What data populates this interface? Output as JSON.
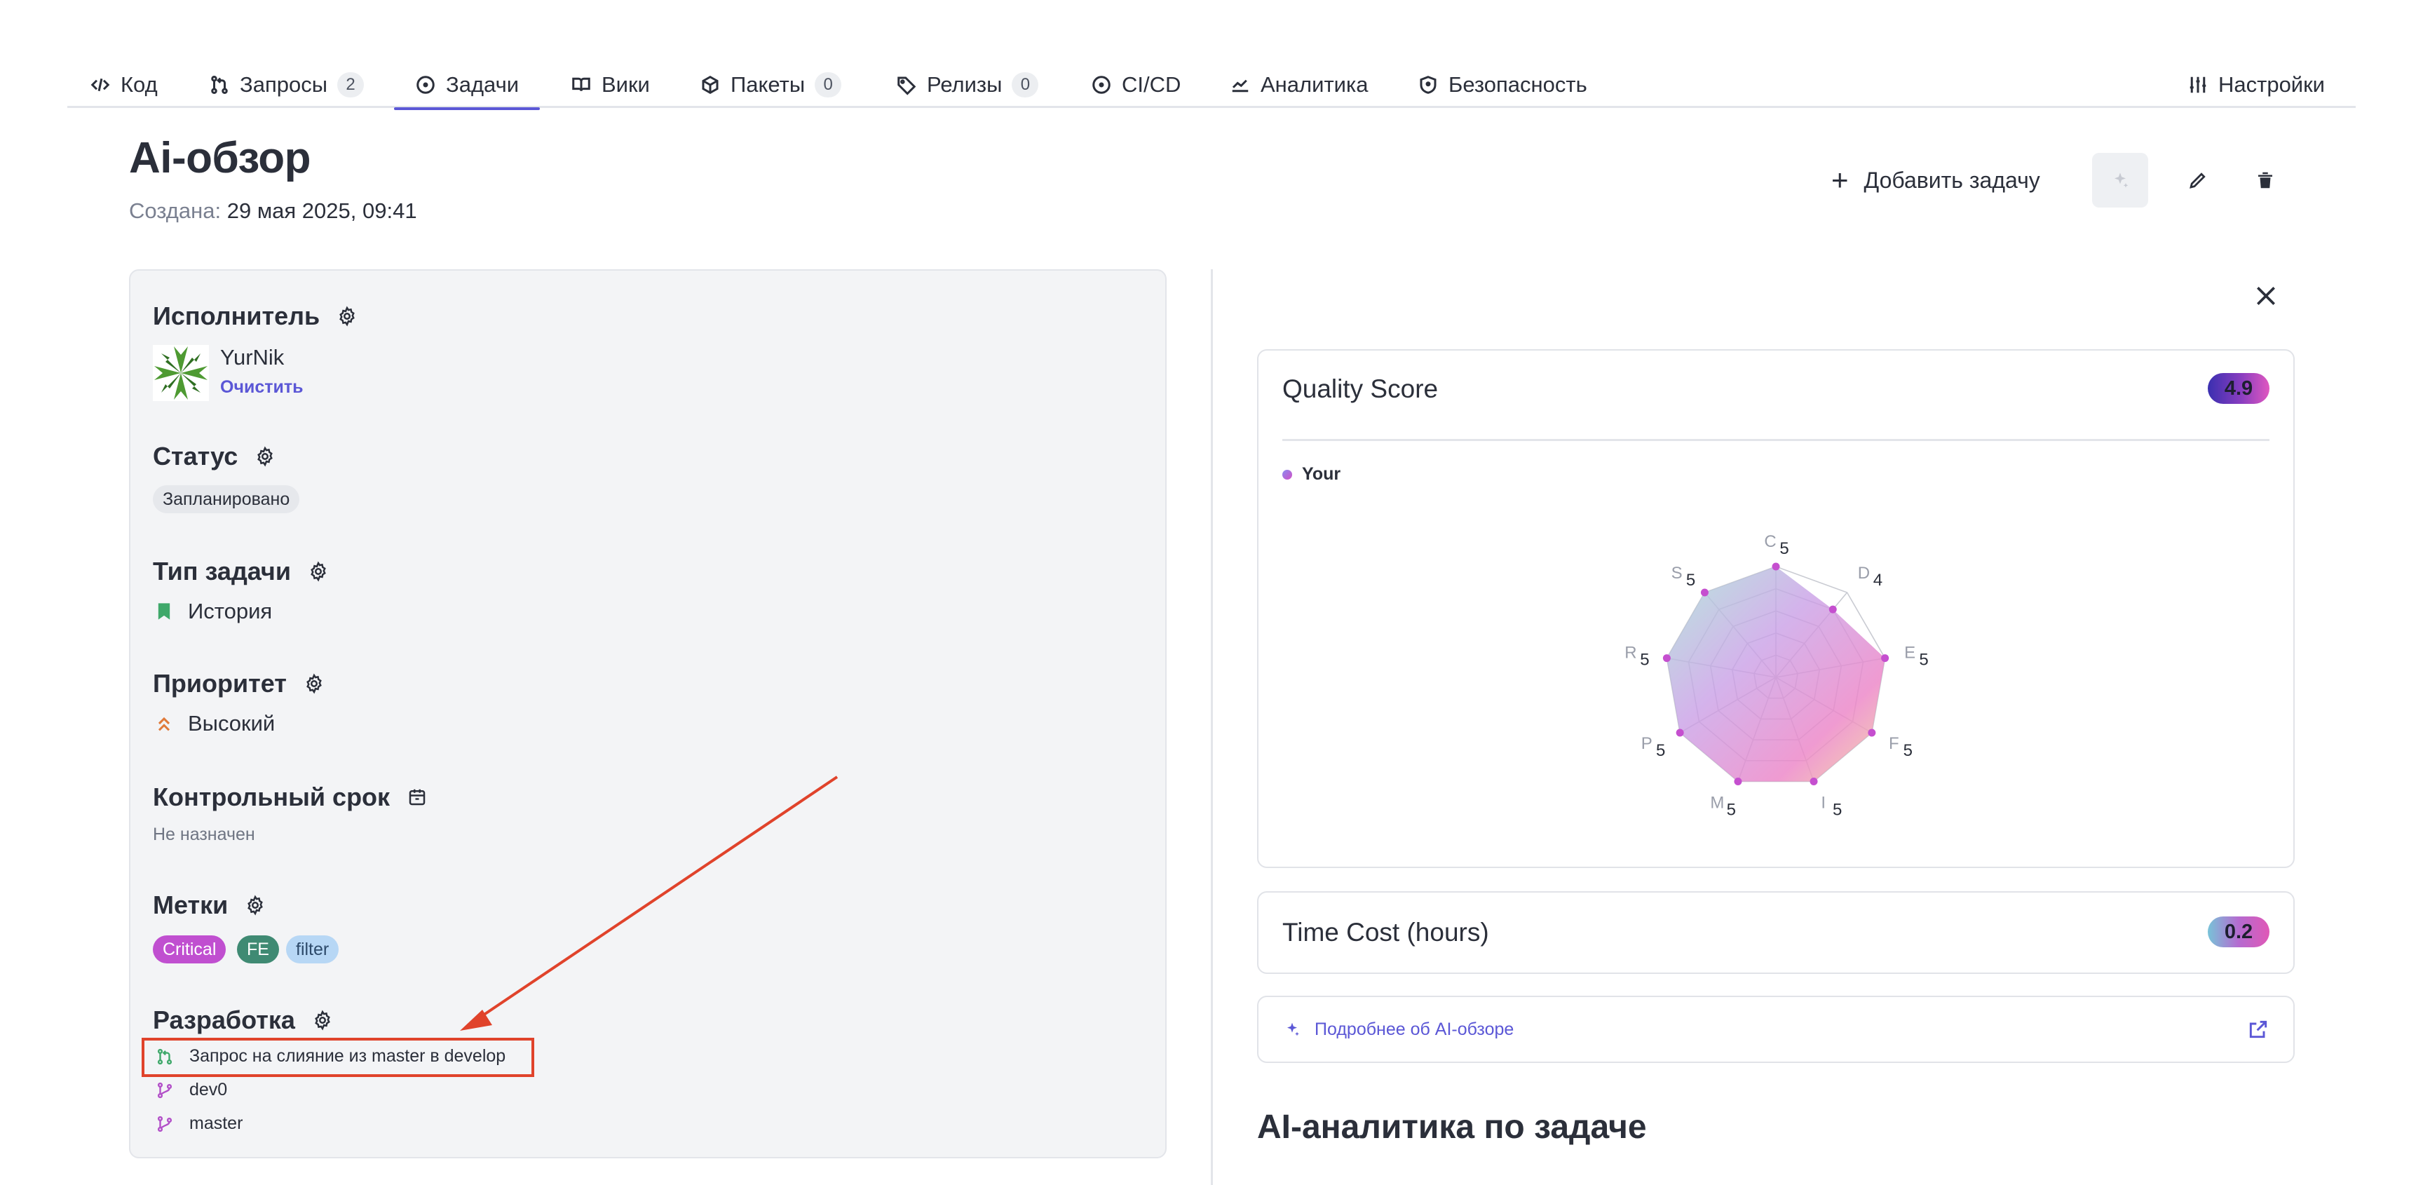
{
  "nav": {
    "items": [
      {
        "label": "Код",
        "icon": "code-icon"
      },
      {
        "label": "Запросы",
        "icon": "merge-request-icon",
        "badge": "2"
      },
      {
        "label": "Задачи",
        "icon": "issue-icon",
        "active": true
      },
      {
        "label": "Вики",
        "icon": "book-icon"
      },
      {
        "label": "Пакеты",
        "icon": "package-icon",
        "badge": "0"
      },
      {
        "label": "Релизы",
        "icon": "tag-icon",
        "badge": "0"
      },
      {
        "label": "CI/CD",
        "icon": "pipeline-icon"
      },
      {
        "label": "Аналитика",
        "icon": "analytics-icon"
      },
      {
        "label": "Безопасность",
        "icon": "shield-icon"
      }
    ],
    "settings_label": "Настройки"
  },
  "header": {
    "title": "Ai-обзор",
    "created_label": "Создана:",
    "created_value": "29 мая 2025, 09:41",
    "add_task_label": "Добавить задачу"
  },
  "left": {
    "assignee": {
      "title": "Исполнитель",
      "name": "YurNik",
      "clear": "Очистить"
    },
    "status": {
      "title": "Статус",
      "value": "Запланировано"
    },
    "type": {
      "title": "Тип задачи",
      "value": "История",
      "color": "#3fa86a"
    },
    "priority": {
      "title": "Приоритет",
      "value": "Высокий",
      "color": "#e07a3a"
    },
    "deadline": {
      "title": "Контрольный срок",
      "value": "Не назначен"
    },
    "labels": {
      "title": "Метки",
      "items": [
        {
          "text": "Critical",
          "bg": "#c04fd0",
          "fg": "#ffffff"
        },
        {
          "text": "FE",
          "bg": "#3f8a73",
          "fg": "#ffffff"
        },
        {
          "text": "filter",
          "bg": "#b7d7f5",
          "fg": "#2d4a6a"
        }
      ]
    },
    "development": {
      "title": "Разработка",
      "items": [
        {
          "text": "Запрос на слияние из master в develop",
          "icon": "merge-request-icon",
          "color": "#3fa86a"
        },
        {
          "text": "dev0",
          "icon": "branch-icon",
          "color": "#b24fc8"
        },
        {
          "text": "master",
          "icon": "branch-icon",
          "color": "#b24fc8"
        }
      ]
    }
  },
  "quality": {
    "title": "Quality Score",
    "score": "4.9",
    "legend": "Your"
  },
  "chart_data": {
    "type": "radar",
    "title": "",
    "series": [
      {
        "name": "Your",
        "values": [
          5,
          4,
          5,
          5,
          5,
          5,
          5,
          5,
          5
        ]
      }
    ],
    "categories": [
      "C",
      "D",
      "E",
      "F",
      "I",
      "M",
      "P",
      "R",
      "S"
    ],
    "value_labels": [
      "5",
      "4",
      "5",
      "5",
      "5",
      "5",
      "5",
      "5",
      "5"
    ],
    "max": 5
  },
  "time_cost": {
    "title": "Time Cost (hours)",
    "value": "0.2"
  },
  "more_link": "Подробнее об AI-обзоре",
  "analytics_title": "AI-аналитика по задаче"
}
